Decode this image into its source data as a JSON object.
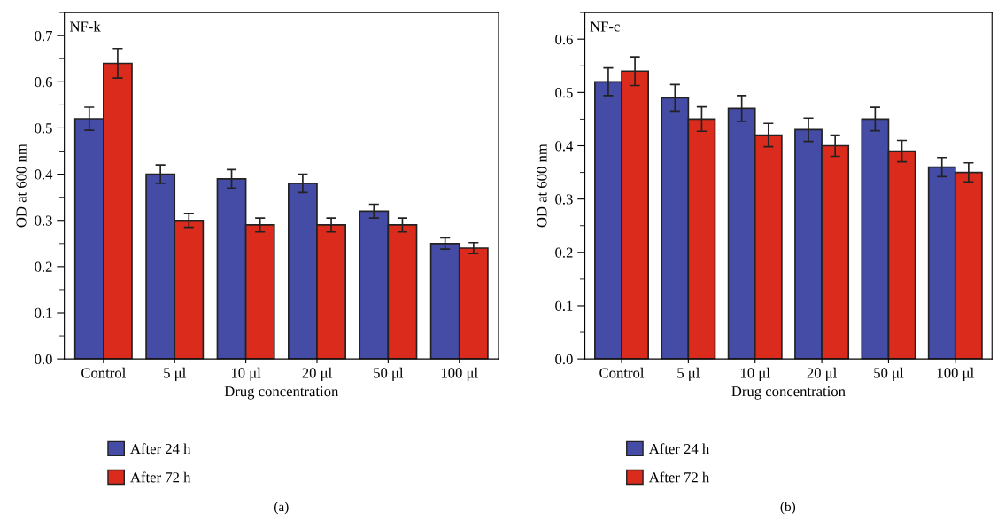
{
  "chart_data": [
    {
      "type": "bar",
      "categories": [
        "Control",
        "5 μl",
        "10 μl",
        "20 μl",
        "50 μl",
        "100 μl"
      ],
      "xlabel": "Drug concentration",
      "ylabel": "OD at 600 nm",
      "ylim": [
        0,
        0.75
      ],
      "yticks": [
        {
          "value": 0,
          "label": "0.0"
        },
        0.1,
        0.2,
        0.3,
        0.4,
        0.5,
        0.6,
        0.7
      ],
      "legend": "bottom left",
      "annotations": [
        "NF-k",
        "(a)"
      ],
      "series": [
        {
          "name": "After 24 h",
          "color": "#454ca6",
          "values": [
            0.52,
            0.4,
            0.39,
            0.38,
            0.32,
            0.25
          ],
          "errors": [
            0.025,
            0.02,
            0.02,
            0.02,
            0.015,
            0.012
          ]
        },
        {
          "name": "After 72 h",
          "color": "#db2b1d",
          "values": [
            0.64,
            0.3,
            0.29,
            0.29,
            0.29,
            0.24
          ],
          "errors": [
            0.032,
            0.015,
            0.015,
            0.015,
            0.015,
            0.012
          ]
        }
      ]
    },
    {
      "type": "bar",
      "categories": [
        "Control",
        "5 μl",
        "10 μl",
        "20 μl",
        "50 μl",
        "100 μl"
      ],
      "xlabel": "Drug concentration",
      "ylabel": "OD at 600 nm",
      "ylim": [
        0,
        0.65
      ],
      "yticks": [
        {
          "value": 0,
          "label": "0.0"
        },
        0.1,
        0.2,
        0.3,
        0.4,
        0.5,
        0.6
      ],
      "legend": "bottom left",
      "annotations": [
        "NF-c",
        "(b)"
      ],
      "series": [
        {
          "name": "After 24 h",
          "color": "#454ca6",
          "values": [
            0.52,
            0.49,
            0.47,
            0.43,
            0.45,
            0.36
          ],
          "errors": [
            0.026,
            0.025,
            0.024,
            0.022,
            0.022,
            0.018
          ]
        },
        {
          "name": "After 72 h",
          "color": "#db2b1d",
          "values": [
            0.54,
            0.45,
            0.42,
            0.4,
            0.39,
            0.35
          ],
          "errors": [
            0.027,
            0.023,
            0.022,
            0.02,
            0.02,
            0.018
          ]
        }
      ]
    }
  ]
}
